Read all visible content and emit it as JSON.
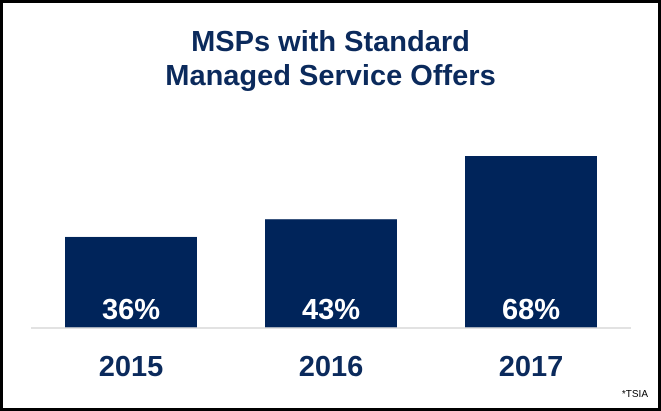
{
  "chart_data": {
    "type": "bar",
    "title_lines": [
      "MSPs with Standard",
      "Managed Service Offers"
    ],
    "categories": [
      "2015",
      "2016",
      "2017"
    ],
    "values": [
      36,
      43,
      68
    ],
    "value_labels": [
      "36%",
      "43%",
      "68%"
    ],
    "unit": "%",
    "ylim": [
      0,
      68
    ],
    "grid": false,
    "legend": "none",
    "bar_color": "#00245a",
    "text_color": "#0b2a5c",
    "source_note": "*TSIA"
  }
}
